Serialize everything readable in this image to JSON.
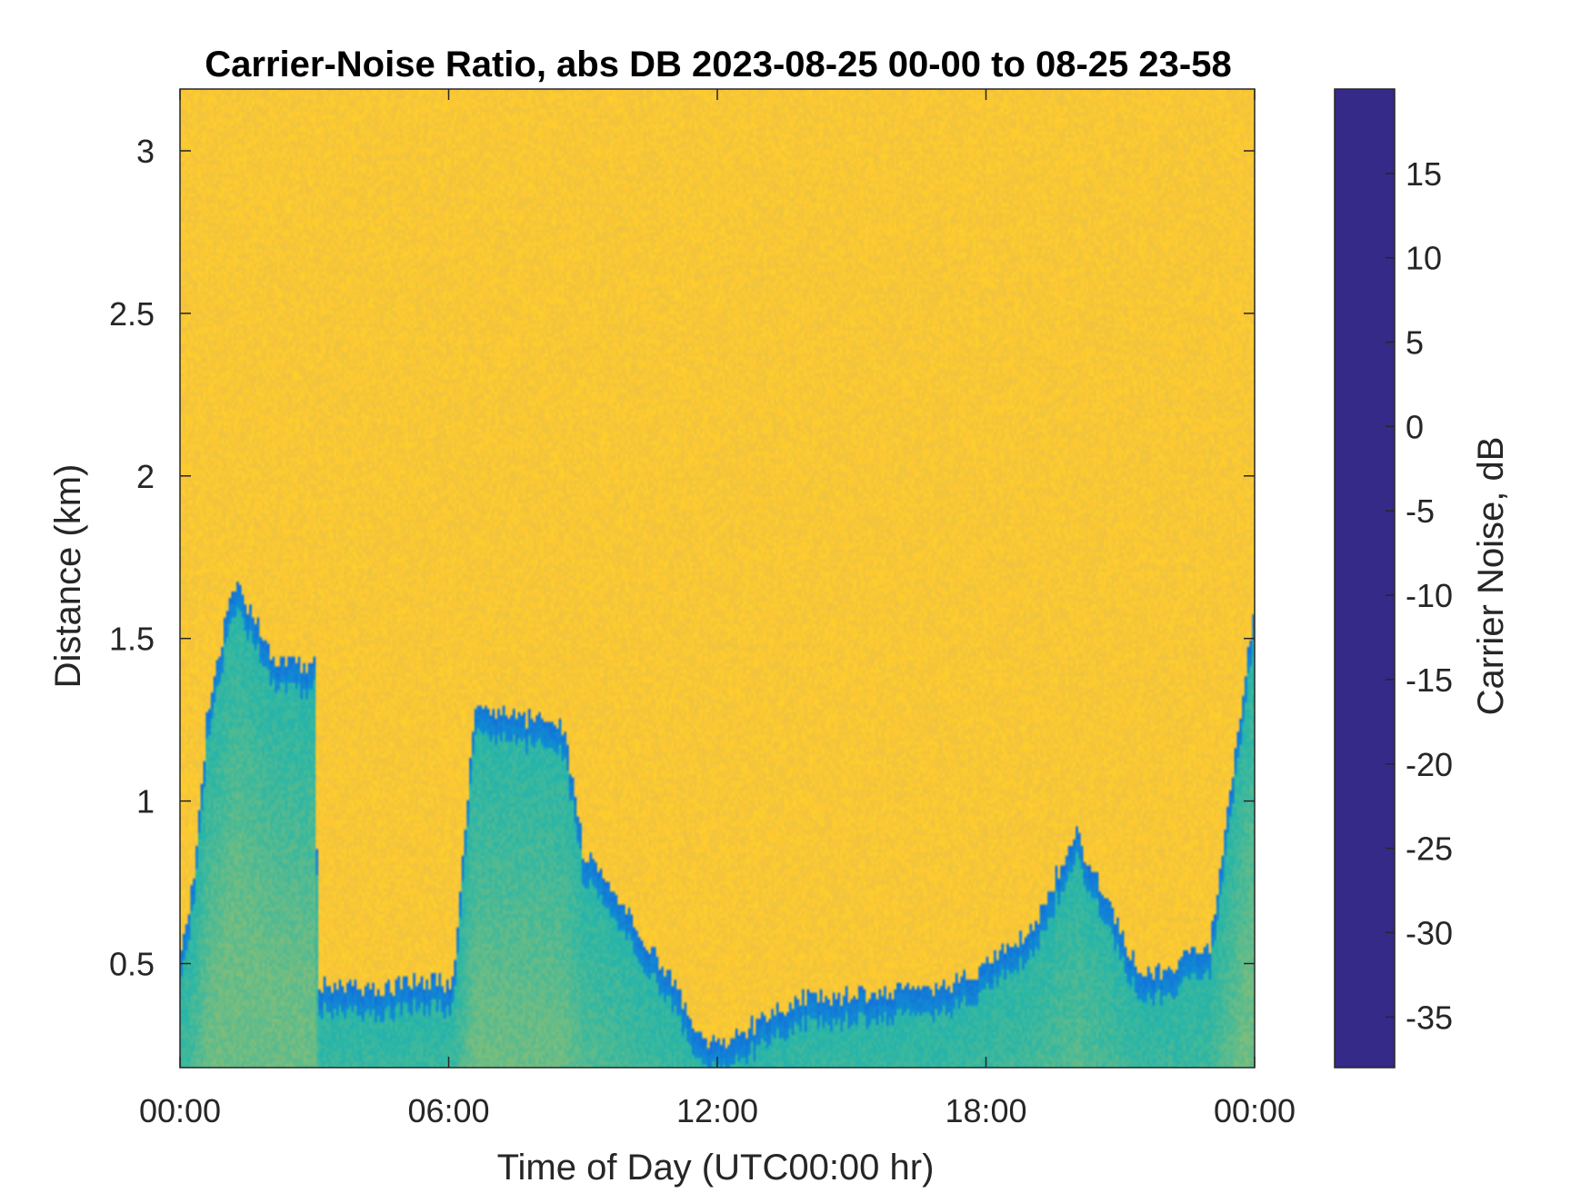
{
  "chart_data": {
    "type": "heatmap",
    "title": "Carrier-Noise Ratio, abs DB 2023-08-25 00-00 to 08-25 23-58",
    "xlabel": "Time of Day (UTC00:00 hr)",
    "ylabel": "Distance (km)",
    "colorbar_label": "Carrier Noise, dB",
    "x_ticks": [
      "00:00",
      "06:00",
      "12:00",
      "18:00",
      "00:00"
    ],
    "x_tick_hours": [
      0,
      6,
      12,
      18,
      24
    ],
    "xlim_hours": [
      0,
      24
    ],
    "y_ticks": [
      0.5,
      1,
      1.5,
      2,
      2.5,
      3
    ],
    "y_tick_labels": [
      "0.5",
      "1",
      "1.5",
      "2",
      "2.5",
      "3"
    ],
    "ylim_km": [
      0.18,
      3.19
    ],
    "colorbar_ticks": [
      15,
      10,
      5,
      0,
      -5,
      -10,
      -15,
      -20,
      -25,
      -30,
      -35
    ],
    "colorbar_tick_labels": [
      "15",
      "10",
      "5",
      "0",
      "-5",
      "-10",
      "-15",
      "-20",
      "-25",
      "-30",
      "-35"
    ],
    "clim_db": [
      -38,
      20
    ],
    "colormap": "parula",
    "colormap_stops": [
      "#352a87",
      "#0f5cdd",
      "#1481d6",
      "#06a4ca",
      "#2eb7a4",
      "#87bf77",
      "#d1bb59",
      "#fec832",
      "#f9fb0e"
    ],
    "background_db": -30,
    "signal_layer_top_km": {
      "hours": [
        0,
        0.3,
        0.6,
        1.2,
        2.2,
        3.0,
        3.1,
        4.3,
        5.5,
        6.1,
        6.6,
        8.6,
        9.0,
        10.0,
        11.0,
        11.5,
        12.0,
        14.0,
        15.0,
        16.5,
        17.5,
        19.0,
        20.0,
        21.5,
        23.0,
        24.0
      ],
      "km": [
        0.55,
        0.75,
        1.25,
        1.68,
        1.42,
        1.42,
        0.44,
        0.42,
        0.45,
        0.44,
        1.3,
        1.22,
        0.85,
        0.65,
        0.45,
        0.3,
        0.25,
        0.4,
        0.4,
        0.42,
        0.45,
        0.6,
        0.9,
        0.45,
        0.55,
        1.6
      ]
    },
    "colors": {
      "background": "#ffffff",
      "axis": "#262626"
    }
  }
}
